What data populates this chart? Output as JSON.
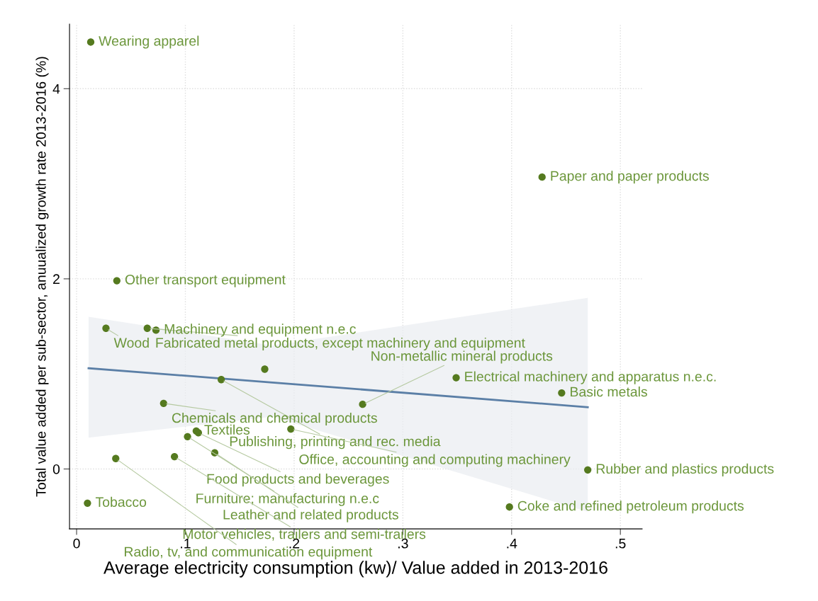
{
  "chart_data": {
    "type": "scatter",
    "xlabel": "Average electricity consumption (kw)/ Value added in 2013-2016",
    "ylabel": "Total value added per sub-sector, anuualized growth rate 2013-2016 (%)",
    "xlim": [
      -0.0065,
      0.52
    ],
    "ylim": [
      -0.63,
      4.68
    ],
    "xticks": [
      0,
      {
        "value": 0.1,
        "label": ".1"
      },
      {
        "value": 0.2,
        "label": ".2"
      },
      {
        "value": 0.3,
        "label": ".3"
      },
      {
        "value": 0.4,
        "label": ".4"
      },
      {
        "value": 0.5,
        "label": ".5"
      }
    ],
    "yticks": [
      0,
      2,
      4
    ],
    "grid": true,
    "marker": "circle",
    "series": [
      {
        "color": "#557a1f",
        "x": [
          0.013,
          0.428,
          0.037,
          0.027,
          0.065,
          0.073,
          0.173,
          0.133,
          0.349,
          0.446,
          0.08,
          0.263,
          0.11,
          0.112,
          0.102,
          0.197,
          0.036,
          0.09,
          0.127,
          0.47,
          0.398,
          0.01
        ],
        "values": [
          4.49,
          3.07,
          1.98,
          1.48,
          1.48,
          1.46,
          1.05,
          0.94,
          0.96,
          0.8,
          0.69,
          0.68,
          0.4,
          0.38,
          0.34,
          0.42,
          0.11,
          0.13,
          0.17,
          -0.01,
          -0.4,
          -0.36
        ]
      },
      {
        "type": "line",
        "marker": "none",
        "color": "#5b7fa6",
        "x": [
          0.011,
          0.18,
          0.47
        ],
        "values": [
          1.06,
          0.91,
          0.65
        ],
        "lower": [
          0.33,
          0.55,
          -0.45
        ],
        "upper": [
          1.6,
          1.3,
          1.8
        ]
      }
    ],
    "annotations": [
      {
        "text": "Wearing apparel",
        "x": 0.013,
        "y": 4.49
      },
      {
        "text": "Paper and paper products",
        "x": 0.428,
        "y": 3.07
      },
      {
        "text": "Other transport equipment",
        "x": 0.037,
        "y": 1.98
      },
      {
        "text": "Wood",
        "x": 0.027,
        "y": 1.48
      },
      {
        "text": "Fabricated metal products, except machinery and equipment",
        "x": 0.065,
        "y": 1.48
      },
      {
        "text": "Machinery and equipment n.e.c",
        "x": 0.073,
        "y": 1.46
      },
      {
        "text": "Publishing, printing and rec. media",
        "x": 0.133,
        "y": 0.94
      },
      {
        "text": "Electrical machinery and apparatus n.e.c.",
        "x": 0.349,
        "y": 0.96
      },
      {
        "text": "Basic metals",
        "x": 0.446,
        "y": 0.8
      },
      {
        "text": "Chemicals and chemical products",
        "x": 0.08,
        "y": 0.69
      },
      {
        "text": "Non-metallic mineral products",
        "x": 0.263,
        "y": 0.68
      },
      {
        "text": "Textiles",
        "x": 0.11,
        "y": 0.4
      },
      {
        "text": "Food products and beverages",
        "x": 0.112,
        "y": 0.38
      },
      {
        "text": "Furniture; manufacturing n.e.c",
        "x": 0.102,
        "y": 0.34
      },
      {
        "text": "Office, accounting and computing machinery",
        "x": 0.197,
        "y": 0.42
      },
      {
        "text": "Radio, tv, and communication equipment",
        "x": 0.036,
        "y": 0.11
      },
      {
        "text": "Motor vehicles, trailers and semi-trailers",
        "x": 0.09,
        "y": 0.13
      },
      {
        "text": "Leather and related products",
        "x": 0.127,
        "y": 0.17
      },
      {
        "text": "Rubber and plastics products",
        "x": 0.47,
        "y": -0.01
      },
      {
        "text": "Coke and refined petroleum products",
        "x": 0.398,
        "y": -0.4
      },
      {
        "text": "Tobacco",
        "x": 0.01,
        "y": -0.36
      }
    ]
  }
}
